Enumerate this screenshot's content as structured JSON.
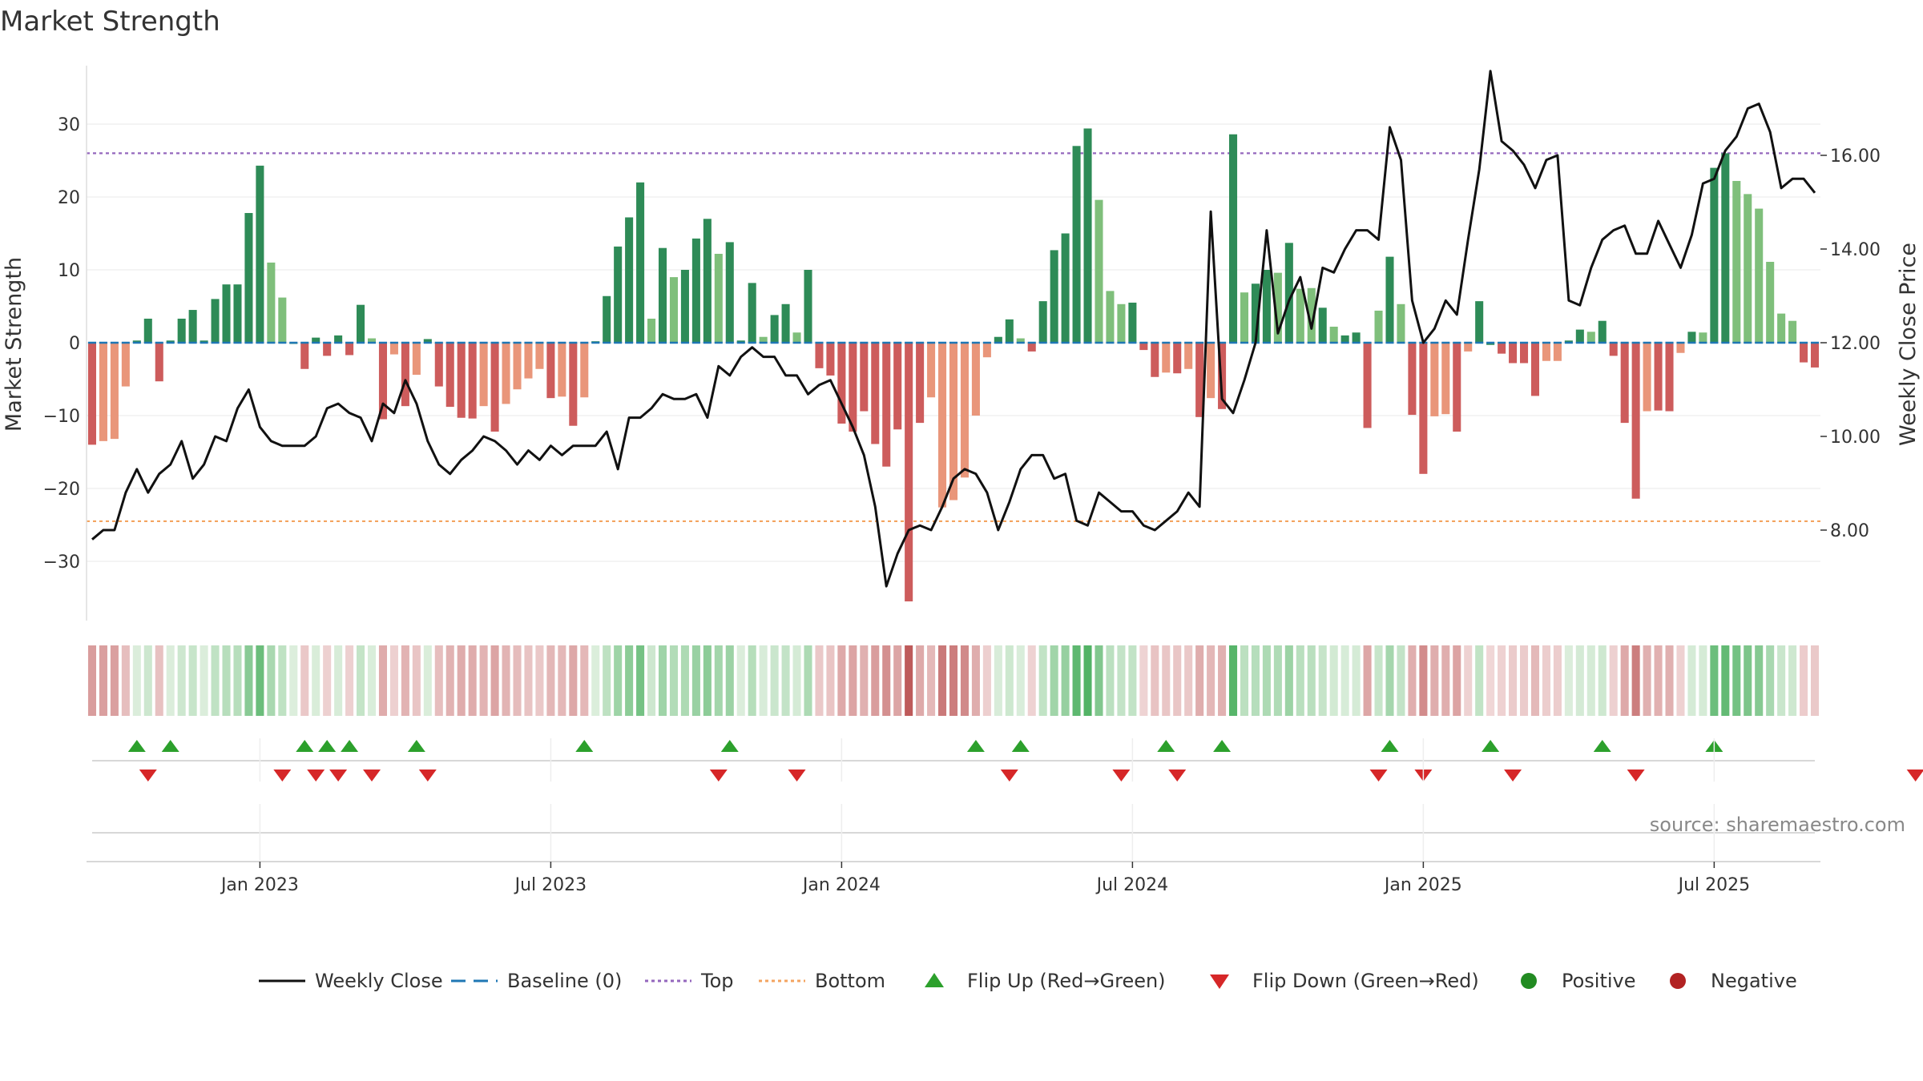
{
  "title": "Market Strength",
  "source": "source: sharemaestro.com",
  "colors": {
    "strong_pos": "#2e8b57",
    "weak_pos": "#7fbf7b",
    "strong_neg": "#cd5c5c",
    "weak_neg": "#e9967a",
    "baseline": "#1f77b4",
    "top": "#9467bd",
    "bottom": "#f4a460",
    "close": "#111111",
    "flip_up": "#2ca02c",
    "flip_down": "#d62728",
    "positive": "#228b22",
    "negative": "#b22222"
  },
  "chart_data": {
    "type": "bar",
    "title": "Market Strength",
    "ylabel": "Market Strength",
    "y2label": "Weekly Close Price",
    "ylim": [
      -38,
      38
    ],
    "y2lim": [
      6.0,
      18.0
    ],
    "yticks": [
      30,
      20,
      10,
      0,
      -10,
      -20,
      -30
    ],
    "yticklabels": [
      "30",
      "20",
      "10",
      "0",
      "−10",
      "−20",
      "−30"
    ],
    "y2ticks": [
      16,
      14,
      12,
      10,
      8
    ],
    "y2ticklabels": [
      "16.00",
      "14.00",
      "12.00",
      "10.00",
      "8.00"
    ],
    "xticks": [
      {
        "week": 15,
        "label": "Jan 2023"
      },
      {
        "week": 41,
        "label": "Jul 2023"
      },
      {
        "week": 67,
        "label": "Jan 2024"
      },
      {
        "week": 93,
        "label": "Jul 2024"
      },
      {
        "week": 119,
        "label": "Jan 2025"
      },
      {
        "week": 145,
        "label": "Jul 2025"
      }
    ],
    "top_line": 26,
    "bottom_line": -24.5,
    "baseline": 0,
    "strength": [
      -14,
      -13.5,
      -13.2,
      -6,
      0.3,
      3.3,
      -5.3,
      0.3,
      3.3,
      4.5,
      0.3,
      6,
      8,
      8,
      17.8,
      24.3,
      11,
      6.2,
      0,
      -3.6,
      0.7,
      -1.8,
      1,
      -1.7,
      5.2,
      0.6,
      -10.5,
      -1.6,
      -8.7,
      -4.4,
      0.5,
      -6,
      -8.8,
      -10.3,
      -10.4,
      -8.7,
      -12.2,
      -8.4,
      -6.4,
      -4.9,
      -3.6,
      -7.6,
      -7.4,
      -11.4,
      -7.5,
      0.2,
      6.4,
      13.2,
      17.2,
      22,
      3.3,
      13,
      9,
      10,
      14.3,
      17,
      12.2,
      13.8,
      0.3,
      8.2,
      0.8,
      3.8,
      5.3,
      1.4,
      10,
      -3.5,
      -4.5,
      -11.1,
      -12.2,
      -9.4,
      -13.9,
      -17,
      -11.9,
      -35.5,
      -11,
      -7.5,
      -22.6,
      -21.6,
      -18.5,
      -10,
      -2,
      0.8,
      3.2,
      0.6,
      -1.2,
      5.7,
      12.7,
      15,
      27,
      29.4,
      19.6,
      7.1,
      5.3,
      5.5,
      -1,
      -4.7,
      -4.1,
      -4.2,
      -3.6,
      -10.2,
      -7.6,
      -9.1,
      28.6,
      6.9,
      8.1,
      10,
      9.6,
      13.7,
      7.4,
      7.5,
      4.8,
      2.2,
      1,
      1.4,
      -11.7,
      4.4,
      11.8,
      5.3,
      -9.9,
      -18,
      -10.1,
      -9.8,
      -12.2,
      -1.2,
      5.7,
      -0.3,
      -1.5,
      -2.8,
      -2.8,
      -7.3,
      -2.5,
      -2.5,
      0.3,
      1.8,
      1.5,
      3,
      -1.8,
      -11,
      -21.4,
      -9.4,
      -9.3,
      -9.4,
      -1.4,
      1.5,
      1.4,
      24,
      26,
      22.2,
      20.4,
      18.4,
      11.1,
      4,
      3,
      -2.7,
      -3.4
    ],
    "strength_class": [
      "sn",
      "wn",
      "wn",
      "wn",
      "sp",
      "sp",
      "sn",
      "sp",
      "sp",
      "sp",
      "sp",
      "sp",
      "sp",
      "sp",
      "sp",
      "sp",
      "wp",
      "wp",
      "sp",
      "sn",
      "sp",
      "sn",
      "sp",
      "sn",
      "sp",
      "wp",
      "sn",
      "wn",
      "sn",
      "wn",
      "sp",
      "sn",
      "sn",
      "sn",
      "sn",
      "wn",
      "sn",
      "wn",
      "wn",
      "wn",
      "wn",
      "sn",
      "wn",
      "sn",
      "wn",
      "sp",
      "sp",
      "sp",
      "sp",
      "sp",
      "wp",
      "sp",
      "wp",
      "sp",
      "sp",
      "sp",
      "wp",
      "sp",
      "sp",
      "sp",
      "wp",
      "sp",
      "sp",
      "wp",
      "sp",
      "sn",
      "sn",
      "sn",
      "sn",
      "sn",
      "sn",
      "sn",
      "sn",
      "sn",
      "sn",
      "wn",
      "wn",
      "wn",
      "wn",
      "wn",
      "wn",
      "sp",
      "sp",
      "wp",
      "sn",
      "sp",
      "sp",
      "sp",
      "sp",
      "sp",
      "wp",
      "wp",
      "wp",
      "sp",
      "sn",
      "sn",
      "wn",
      "sn",
      "wn",
      "sn",
      "wn",
      "sn",
      "sp",
      "wp",
      "sp",
      "sp",
      "wp",
      "sp",
      "wp",
      "wp",
      "sp",
      "wp",
      "sp",
      "sp",
      "sn",
      "wp",
      "sp",
      "wp",
      "sn",
      "sn",
      "wn",
      "wn",
      "sn",
      "wn",
      "sp",
      "sp",
      "sn",
      "sn",
      "sn",
      "sn",
      "wn",
      "wn",
      "sp",
      "sp",
      "wp",
      "sp",
      "sn",
      "sn",
      "sn",
      "wn",
      "sn",
      "sn",
      "wn",
      "sp",
      "wp",
      "sp",
      "sp",
      "wp",
      "wp",
      "wp",
      "wp",
      "wp",
      "wp",
      "sn",
      "sn"
    ],
    "close": [
      7.8,
      8.0,
      8.0,
      8.8,
      9.3,
      8.8,
      9.2,
      9.4,
      9.9,
      9.1,
      9.4,
      10.0,
      9.9,
      10.6,
      11.0,
      10.2,
      9.9,
      9.8,
      9.8,
      9.8,
      10.0,
      10.6,
      10.7,
      10.5,
      10.4,
      9.9,
      10.7,
      10.5,
      11.2,
      10.7,
      9.9,
      9.4,
      9.2,
      9.5,
      9.7,
      10.0,
      9.9,
      9.7,
      9.4,
      9.7,
      9.5,
      9.8,
      9.6,
      9.8,
      9.8,
      9.8,
      10.1,
      9.3,
      10.4,
      10.4,
      10.6,
      10.9,
      10.8,
      10.8,
      10.9,
      10.4,
      11.5,
      11.3,
      11.7,
      11.9,
      11.7,
      11.7,
      11.3,
      11.3,
      10.9,
      11.1,
      11.2,
      10.7,
      10.2,
      9.6,
      8.5,
      6.8,
      7.5,
      8.0,
      8.1,
      8.0,
      8.5,
      9.1,
      9.3,
      9.2,
      8.8,
      8.0,
      8.6,
      9.3,
      9.6,
      9.6,
      9.1,
      9.2,
      8.2,
      8.1,
      8.8,
      8.6,
      8.4,
      8.4,
      8.1,
      8.0,
      8.2,
      8.4,
      8.8,
      8.5,
      14.8,
      10.8,
      10.5,
      11.2,
      12.0,
      14.4,
      12.2,
      12.9,
      13.4,
      12.3,
      13.6,
      13.5,
      14.0,
      14.4,
      14.4,
      14.2,
      16.6,
      15.9,
      12.9,
      12.0,
      12.3,
      12.9,
      12.6,
      14.2,
      15.7,
      17.8,
      16.3,
      16.1,
      15.8,
      15.3,
      15.9,
      16.0,
      12.9,
      12.8,
      13.6,
      14.2,
      14.4,
      14.5,
      13.9,
      13.9,
      14.6,
      14.1,
      13.6,
      14.3,
      15.4,
      15.5,
      16.1,
      16.4,
      17.0,
      17.1,
      16.5,
      15.3,
      15.5,
      15.5,
      15.2
    ]
  },
  "lower_panels": {
    "flip_up_weeks": [
      4,
      7,
      19,
      21,
      23,
      29,
      44,
      57,
      79,
      83,
      96,
      101,
      116,
      125,
      135,
      145
    ],
    "flip_down_weeks": [
      5,
      17,
      20,
      22,
      25,
      30,
      56,
      63,
      82,
      92,
      97,
      115,
      119,
      127,
      138,
      163
    ]
  },
  "legend": [
    {
      "key": "close",
      "label": "Weekly Close"
    },
    {
      "key": "baseline",
      "label": "Baseline (0)"
    },
    {
      "key": "top",
      "label": "Top"
    },
    {
      "key": "bottom",
      "label": "Bottom"
    },
    {
      "key": "flip_up",
      "label": "Flip Up (Red→Green)"
    },
    {
      "key": "flip_down",
      "label": "Flip Down (Green→Red)"
    },
    {
      "key": "positive",
      "label": "Positive"
    },
    {
      "key": "negative",
      "label": "Negative"
    }
  ]
}
